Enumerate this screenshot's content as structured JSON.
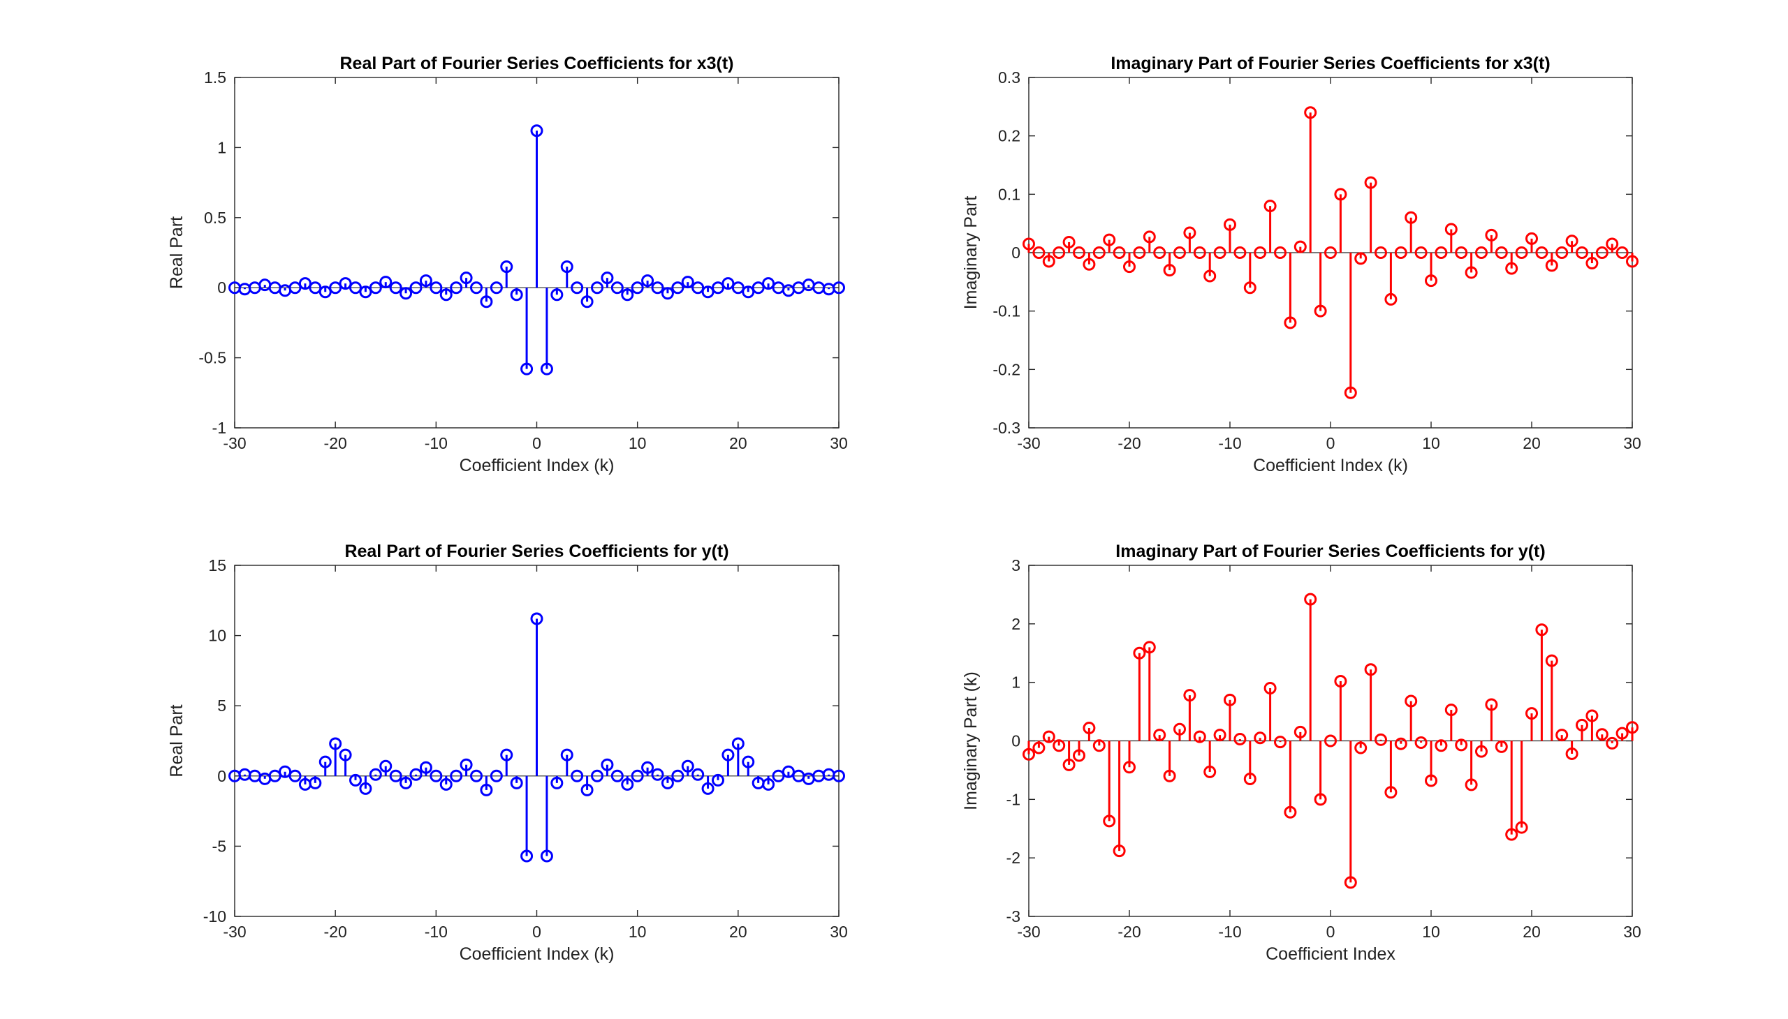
{
  "chart_data": [
    {
      "type": "stem",
      "title": "Real Part of Fourier Series Coefficients for x3(t)",
      "xlabel": "Coefficient Index (k)",
      "ylabel": "Real Part",
      "xlim": [
        -30,
        30
      ],
      "ylim": [
        -1,
        1.5
      ],
      "xticks": [
        "-30",
        "-20",
        "-10",
        "0",
        "10",
        "20",
        "30"
      ],
      "yticks": [
        "-1",
        "-0.5",
        "0",
        "0.5",
        "1",
        "1.5"
      ],
      "color": "#0000ff",
      "x": [
        -30,
        -29,
        -28,
        -27,
        -26,
        -25,
        -24,
        -23,
        -22,
        -21,
        -20,
        -19,
        -18,
        -17,
        -16,
        -15,
        -14,
        -13,
        -12,
        -11,
        -10,
        -9,
        -8,
        -7,
        -6,
        -5,
        -4,
        -3,
        -2,
        -1,
        0,
        1,
        2,
        3,
        4,
        5,
        6,
        7,
        8,
        9,
        10,
        11,
        12,
        13,
        14,
        15,
        16,
        17,
        18,
        19,
        20,
        21,
        22,
        23,
        24,
        25,
        26,
        27,
        28,
        29,
        30
      ],
      "y": [
        0.0,
        -0.01,
        0.0,
        0.02,
        0.0,
        -0.02,
        0.0,
        0.03,
        0.0,
        -0.03,
        0.0,
        0.03,
        0.0,
        -0.03,
        0.0,
        0.04,
        0.0,
        -0.04,
        0.0,
        0.05,
        0.0,
        -0.05,
        0.0,
        0.07,
        0.0,
        -0.1,
        0.0,
        0.15,
        -0.05,
        -0.58,
        1.12,
        -0.58,
        -0.05,
        0.15,
        0.0,
        -0.1,
        0.0,
        0.07,
        0.0,
        -0.05,
        0.0,
        0.05,
        0.0,
        -0.04,
        0.0,
        0.04,
        0.0,
        -0.03,
        0.0,
        0.03,
        0.0,
        -0.03,
        0.0,
        0.03,
        0.0,
        -0.02,
        0.0,
        0.02,
        0.0,
        -0.01,
        0.0
      ]
    },
    {
      "type": "stem",
      "title": "Imaginary Part of Fourier Series Coefficients for x3(t)",
      "xlabel": "Coefficient Index (k)",
      "ylabel": "Imaginary Part",
      "xlim": [
        -30,
        30
      ],
      "ylim": [
        -0.3,
        0.3
      ],
      "xticks": [
        "-30",
        "-20",
        "-10",
        "0",
        "10",
        "20",
        "30"
      ],
      "yticks": [
        "-0.3",
        "-0.2",
        "-0.1",
        "0",
        "0.1",
        "0.2",
        "0.3"
      ],
      "color": "#ff0000",
      "x": [
        -30,
        -29,
        -28,
        -27,
        -26,
        -25,
        -24,
        -23,
        -22,
        -21,
        -20,
        -19,
        -18,
        -17,
        -16,
        -15,
        -14,
        -13,
        -12,
        -11,
        -10,
        -9,
        -8,
        -7,
        -6,
        -5,
        -4,
        -3,
        -2,
        -1,
        0,
        1,
        2,
        3,
        4,
        5,
        6,
        7,
        8,
        9,
        10,
        11,
        12,
        13,
        14,
        15,
        16,
        17,
        18,
        19,
        20,
        21,
        22,
        23,
        24,
        25,
        26,
        27,
        28,
        29,
        30
      ],
      "y": [
        0.015,
        0.0,
        -0.015,
        0.0,
        0.018,
        0.0,
        -0.02,
        0.0,
        0.022,
        0.0,
        -0.024,
        0.0,
        0.027,
        0.0,
        -0.03,
        0.0,
        0.034,
        0.0,
        -0.04,
        0.0,
        0.048,
        0.0,
        -0.06,
        0.0,
        0.08,
        0.0,
        -0.12,
        0.01,
        0.24,
        -0.1,
        0.0,
        0.1,
        -0.24,
        -0.01,
        0.12,
        0.0,
        -0.08,
        0.0,
        0.06,
        0.0,
        -0.048,
        0.0,
        0.04,
        0.0,
        -0.034,
        0.0,
        0.03,
        0.0,
        -0.027,
        0.0,
        0.024,
        0.0,
        -0.022,
        0.0,
        0.02,
        0.0,
        -0.018,
        0.0,
        0.015,
        0.0,
        -0.015
      ]
    },
    {
      "type": "stem",
      "title": "Real Part of Fourier Series Coefficients for y(t)",
      "xlabel": "Coefficient Index (k)",
      "ylabel": "Real Part",
      "xlim": [
        -30,
        30
      ],
      "ylim": [
        -10,
        15
      ],
      "xticks": [
        "-30",
        "-20",
        "-10",
        "0",
        "10",
        "20",
        "30"
      ],
      "yticks": [
        "-10",
        "-5",
        "0",
        "5",
        "10",
        "15"
      ],
      "color": "#0000ff",
      "x": [
        -30,
        -29,
        -28,
        -27,
        -26,
        -25,
        -24,
        -23,
        -22,
        -21,
        -20,
        -19,
        -18,
        -17,
        -16,
        -15,
        -14,
        -13,
        -12,
        -11,
        -10,
        -9,
        -8,
        -7,
        -6,
        -5,
        -4,
        -3,
        -2,
        -1,
        0,
        1,
        2,
        3,
        4,
        5,
        6,
        7,
        8,
        9,
        10,
        11,
        12,
        13,
        14,
        15,
        16,
        17,
        18,
        19,
        20,
        21,
        22,
        23,
        24,
        25,
        26,
        27,
        28,
        29,
        30
      ],
      "y": [
        0.0,
        0.1,
        0.0,
        -0.2,
        0.0,
        0.3,
        0.0,
        -0.6,
        -0.5,
        1.0,
        2.3,
        1.5,
        -0.3,
        -0.9,
        0.1,
        0.7,
        0.0,
        -0.5,
        0.1,
        0.6,
        0.0,
        -0.6,
        0.0,
        0.8,
        0.0,
        -1.0,
        0.0,
        1.5,
        -0.5,
        -5.7,
        11.2,
        -5.7,
        -0.5,
        1.5,
        0.0,
        -1.0,
        0.0,
        0.8,
        0.0,
        -0.6,
        0.0,
        0.6,
        0.1,
        -0.5,
        0.0,
        0.7,
        0.1,
        -0.9,
        -0.3,
        1.5,
        2.3,
        1.0,
        -0.5,
        -0.6,
        0.0,
        0.3,
        0.0,
        -0.2,
        0.0,
        0.1,
        0.0
      ]
    },
    {
      "type": "stem",
      "title": "Imaginary Part of Fourier Series Coefficients for y(t)",
      "xlabel": "Coefficient Index",
      "ylabel": "Imaginary Part (k)",
      "xlim": [
        -30,
        30
      ],
      "ylim": [
        -3,
        3
      ],
      "xticks": [
        "-30",
        "-20",
        "-10",
        "0",
        "10",
        "20",
        "30"
      ],
      "yticks": [
        "-3",
        "-2",
        "-1",
        "0",
        "1",
        "2",
        "3"
      ],
      "color": "#ff0000",
      "x": [
        -30,
        -29,
        -28,
        -27,
        -26,
        -25,
        -24,
        -23,
        -22,
        -21,
        -20,
        -19,
        -18,
        -17,
        -16,
        -15,
        -14,
        -13,
        -12,
        -11,
        -10,
        -9,
        -8,
        -7,
        -6,
        -5,
        -4,
        -3,
        -2,
        -1,
        0,
        1,
        2,
        3,
        4,
        5,
        6,
        7,
        8,
        9,
        10,
        11,
        12,
        13,
        14,
        15,
        16,
        17,
        18,
        19,
        20,
        21,
        22,
        23,
        24,
        25,
        26,
        27,
        28,
        29,
        30
      ],
      "y": [
        -0.23,
        -0.12,
        0.07,
        -0.08,
        -0.41,
        -0.25,
        0.22,
        -0.08,
        -1.37,
        -1.88,
        -0.45,
        1.5,
        1.6,
        0.1,
        -0.6,
        0.2,
        0.78,
        0.07,
        -0.53,
        0.1,
        0.7,
        0.03,
        -0.65,
        0.05,
        0.9,
        -0.02,
        -1.22,
        0.15,
        2.42,
        -1.0,
        0.0,
        1.02,
        -2.42,
        -0.12,
        1.22,
        0.02,
        -0.88,
        -0.05,
        0.68,
        -0.03,
        -0.68,
        -0.08,
        0.53,
        -0.07,
        -0.75,
        -0.18,
        0.62,
        -0.1,
        -1.6,
        -1.48,
        0.47,
        1.9,
        1.37,
        0.1,
        -0.22,
        0.27,
        0.43,
        0.11,
        -0.04,
        0.13,
        0.23
      ]
    }
  ]
}
